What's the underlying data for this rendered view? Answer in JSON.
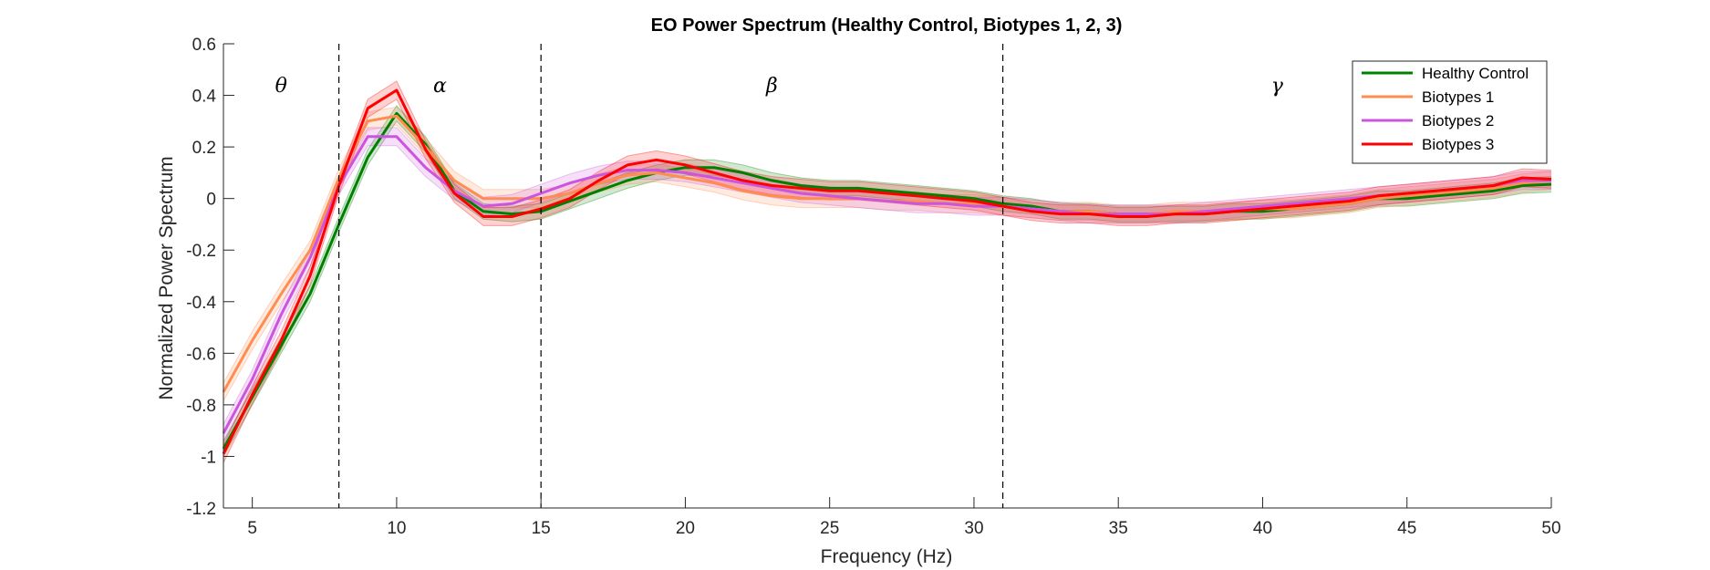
{
  "chart_data": {
    "type": "line",
    "title": "EO Power Spectrum (Healthy Control, Biotypes 1, 2, 3)",
    "xlabel": "Frequency (Hz)",
    "ylabel": "Normalized Power Spectrum",
    "xlim": [
      4,
      50
    ],
    "ylim": [
      -1.2,
      0.6
    ],
    "x_ticks": [
      5,
      10,
      15,
      20,
      25,
      30,
      35,
      40,
      45,
      50
    ],
    "x_tick_labels": [
      "5",
      "10",
      "15",
      "20",
      "25",
      "30",
      "35",
      "40",
      "45",
      "50"
    ],
    "y_ticks": [
      -1.2,
      -1,
      -0.8,
      -0.6,
      -0.4,
      -0.2,
      0,
      0.2,
      0.4,
      0.6
    ],
    "y_tick_labels": [
      "-1.2",
      "-1",
      "-0.8",
      "-0.6",
      "-0.4",
      "-0.2",
      "0",
      "0.2",
      "0.4",
      "0.6"
    ],
    "grid": false,
    "legend_position": "top-right",
    "band_boundaries": [
      8,
      15,
      31
    ],
    "band_labels": [
      {
        "label": "θ",
        "x": 6
      },
      {
        "label": "α",
        "x": 11.5
      },
      {
        "label": "β",
        "x": 23
      },
      {
        "label": "γ",
        "x": 40.5
      }
    ],
    "band_label_y": 0.44,
    "x": [
      4,
      5,
      6,
      7,
      8,
      9,
      10,
      11,
      12,
      13,
      14,
      15,
      16,
      17,
      18,
      19,
      20,
      21,
      22,
      23,
      24,
      25,
      26,
      27,
      28,
      29,
      30,
      31,
      32,
      33,
      34,
      35,
      36,
      37,
      38,
      39,
      40,
      41,
      42,
      43,
      44,
      45,
      46,
      47,
      48,
      49,
      50
    ],
    "series": [
      {
        "name": "Healthy Control",
        "color": "#008000",
        "band_width": 0.03,
        "values": [
          -0.97,
          -0.77,
          -0.57,
          -0.37,
          -0.1,
          0.16,
          0.33,
          0.21,
          0.03,
          -0.05,
          -0.06,
          -0.05,
          -0.01,
          0.03,
          0.07,
          0.1,
          0.12,
          0.12,
          0.1,
          0.07,
          0.05,
          0.04,
          0.04,
          0.03,
          0.02,
          0.01,
          0.0,
          -0.02,
          -0.03,
          -0.05,
          -0.05,
          -0.06,
          -0.06,
          -0.06,
          -0.06,
          -0.05,
          -0.05,
          -0.04,
          -0.03,
          -0.02,
          0.0,
          0.0,
          0.01,
          0.02,
          0.03,
          0.05,
          0.055
        ]
      },
      {
        "name": "Biotypes 1",
        "color": "#FF8C50",
        "band_width": 0.035,
        "values": [
          -0.75,
          -0.55,
          -0.37,
          -0.2,
          0.08,
          0.3,
          0.32,
          0.2,
          0.07,
          0.0,
          0.0,
          0.0,
          0.02,
          0.06,
          0.09,
          0.1,
          0.08,
          0.06,
          0.03,
          0.01,
          0.0,
          0.0,
          0.0,
          -0.01,
          -0.01,
          -0.02,
          -0.02,
          -0.03,
          -0.04,
          -0.05,
          -0.05,
          -0.06,
          -0.06,
          -0.05,
          -0.05,
          -0.05,
          -0.04,
          -0.04,
          -0.03,
          -0.02,
          0.0,
          0.01,
          0.02,
          0.03,
          0.04,
          0.06,
          0.07
        ]
      },
      {
        "name": "Biotypes 2",
        "color": "#CC55DD",
        "band_width": 0.035,
        "values": [
          -0.91,
          -0.7,
          -0.45,
          -0.23,
          0.05,
          0.24,
          0.24,
          0.12,
          0.03,
          -0.03,
          -0.02,
          0.02,
          0.06,
          0.09,
          0.11,
          0.11,
          0.1,
          0.08,
          0.06,
          0.04,
          0.02,
          0.01,
          0.0,
          -0.01,
          -0.02,
          -0.02,
          -0.03,
          -0.03,
          -0.04,
          -0.05,
          -0.06,
          -0.06,
          -0.06,
          -0.06,
          -0.05,
          -0.04,
          -0.03,
          -0.02,
          -0.01,
          0.0,
          0.01,
          0.02,
          0.03,
          0.04,
          0.05,
          0.07,
          0.07
        ]
      },
      {
        "name": "Biotypes 3",
        "color": "#FF0000",
        "band_width": 0.035,
        "values": [
          -0.99,
          -0.76,
          -0.55,
          -0.3,
          0.05,
          0.35,
          0.42,
          0.19,
          0.02,
          -0.07,
          -0.07,
          -0.04,
          0.0,
          0.07,
          0.13,
          0.15,
          0.13,
          0.1,
          0.07,
          0.05,
          0.04,
          0.03,
          0.03,
          0.02,
          0.01,
          0.0,
          -0.01,
          -0.03,
          -0.05,
          -0.06,
          -0.06,
          -0.07,
          -0.07,
          -0.06,
          -0.06,
          -0.05,
          -0.04,
          -0.03,
          -0.02,
          -0.01,
          0.01,
          0.02,
          0.03,
          0.04,
          0.05,
          0.08,
          0.075
        ]
      }
    ]
  }
}
